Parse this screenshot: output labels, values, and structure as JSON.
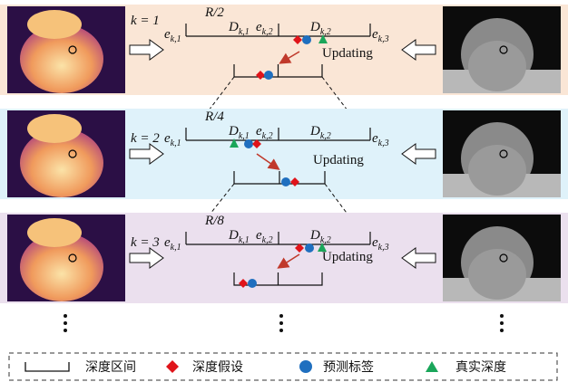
{
  "rows": [
    {
      "k_label": "k = 1",
      "range": "R/2",
      "e1": {
        "base": "e",
        "sub": "k,1"
      },
      "d1": {
        "base": "D",
        "sub": "k,1"
      },
      "e2": {
        "base": "e",
        "sub": "k,2"
      },
      "d2": {
        "base": "D",
        "sub": "k,2"
      },
      "e3": {
        "base": "e",
        "sub": "k,3"
      },
      "updating": "Updating"
    },
    {
      "k_label": "k = 2",
      "range": "R/4",
      "e1": {
        "base": "e",
        "sub": "k,1"
      },
      "d1": {
        "base": "D",
        "sub": "k,1"
      },
      "e2": {
        "base": "e",
        "sub": "k,2"
      },
      "d2": {
        "base": "D",
        "sub": "k,2"
      },
      "e3": {
        "base": "e",
        "sub": "k,3"
      },
      "updating": "Updating"
    },
    {
      "k_label": "k = 3",
      "range": "R/8",
      "e1": {
        "base": "e",
        "sub": "k,1"
      },
      "d1": {
        "base": "D",
        "sub": "k,1"
      },
      "e2": {
        "base": "e",
        "sub": "k,2"
      },
      "d2": {
        "base": "D",
        "sub": "k,2"
      },
      "e3": {
        "base": "e",
        "sub": "k,3"
      },
      "updating": "Updating"
    }
  ],
  "legend": {
    "interval": "深度区间",
    "hypothesis": "深度假设",
    "predicted": "预测标签",
    "ground_truth": "真实深度"
  }
}
